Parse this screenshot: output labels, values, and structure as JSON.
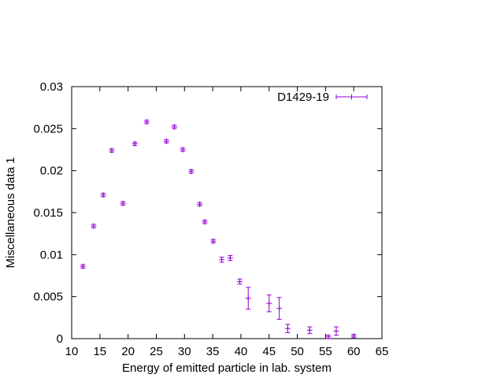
{
  "chart_data": {
    "type": "scatter",
    "xlabel": "Energy of emitted particle in lab. system",
    "ylabel": "Miscellaneous data 1",
    "xlim": [
      10,
      65
    ],
    "ylim": [
      0,
      0.03
    ],
    "x_ticks": [
      "10",
      "15",
      "20",
      "25",
      "30",
      "35",
      "40",
      "45",
      "50",
      "55",
      "60",
      "65"
    ],
    "y_ticks": [
      "0",
      "0.005",
      "0.01",
      "0.015",
      "0.02",
      "0.025",
      "0.03"
    ],
    "x_tick_values": [
      10,
      15,
      20,
      25,
      30,
      35,
      40,
      45,
      50,
      55,
      60,
      65
    ],
    "y_tick_values": [
      0,
      0.005,
      0.01,
      0.015,
      0.02,
      0.025,
      0.03
    ],
    "grid": false,
    "legend_position": "top-right",
    "series": [
      {
        "name": "D1429-19",
        "color": "#9400d3",
        "marker": "plus",
        "error_bars": "y",
        "points": [
          {
            "x": 12.0,
            "y": 0.0086,
            "err": 0.0002
          },
          {
            "x": 13.9,
            "y": 0.0134,
            "err": 0.0002
          },
          {
            "x": 15.6,
            "y": 0.0171,
            "err": 0.0002
          },
          {
            "x": 17.1,
            "y": 0.0224,
            "err": 0.0002
          },
          {
            "x": 19.1,
            "y": 0.0161,
            "err": 0.0002
          },
          {
            "x": 21.2,
            "y": 0.0232,
            "err": 0.0002
          },
          {
            "x": 23.3,
            "y": 0.0258,
            "err": 0.0002
          },
          {
            "x": 26.8,
            "y": 0.0235,
            "err": 0.0002
          },
          {
            "x": 28.2,
            "y": 0.0252,
            "err": 0.0002
          },
          {
            "x": 29.7,
            "y": 0.0225,
            "err": 0.0002
          },
          {
            "x": 31.2,
            "y": 0.0199,
            "err": 0.0002
          },
          {
            "x": 32.7,
            "y": 0.016,
            "err": 0.0002
          },
          {
            "x": 33.6,
            "y": 0.0139,
            "err": 0.0002
          },
          {
            "x": 35.1,
            "y": 0.0116,
            "err": 0.0002
          },
          {
            "x": 36.6,
            "y": 0.0094,
            "err": 0.0003
          },
          {
            "x": 38.1,
            "y": 0.0096,
            "err": 0.0003
          },
          {
            "x": 39.8,
            "y": 0.0068,
            "err": 0.0003
          },
          {
            "x": 41.3,
            "y": 0.0048,
            "err": 0.0013
          },
          {
            "x": 45.0,
            "y": 0.0042,
            "err": 0.001
          },
          {
            "x": 46.8,
            "y": 0.0036,
            "err": 0.0013
          },
          {
            "x": 48.3,
            "y": 0.0012,
            "err": 0.0005
          },
          {
            "x": 52.2,
            "y": 0.001,
            "err": 0.0004
          },
          {
            "x": 55.5,
            "y": 0.0002,
            "err": 0.0002
          },
          {
            "x": 56.9,
            "y": 0.0009,
            "err": 0.0005
          },
          {
            "x": 60.0,
            "y": 0.0003,
            "err": 0.0002
          }
        ]
      }
    ]
  }
}
